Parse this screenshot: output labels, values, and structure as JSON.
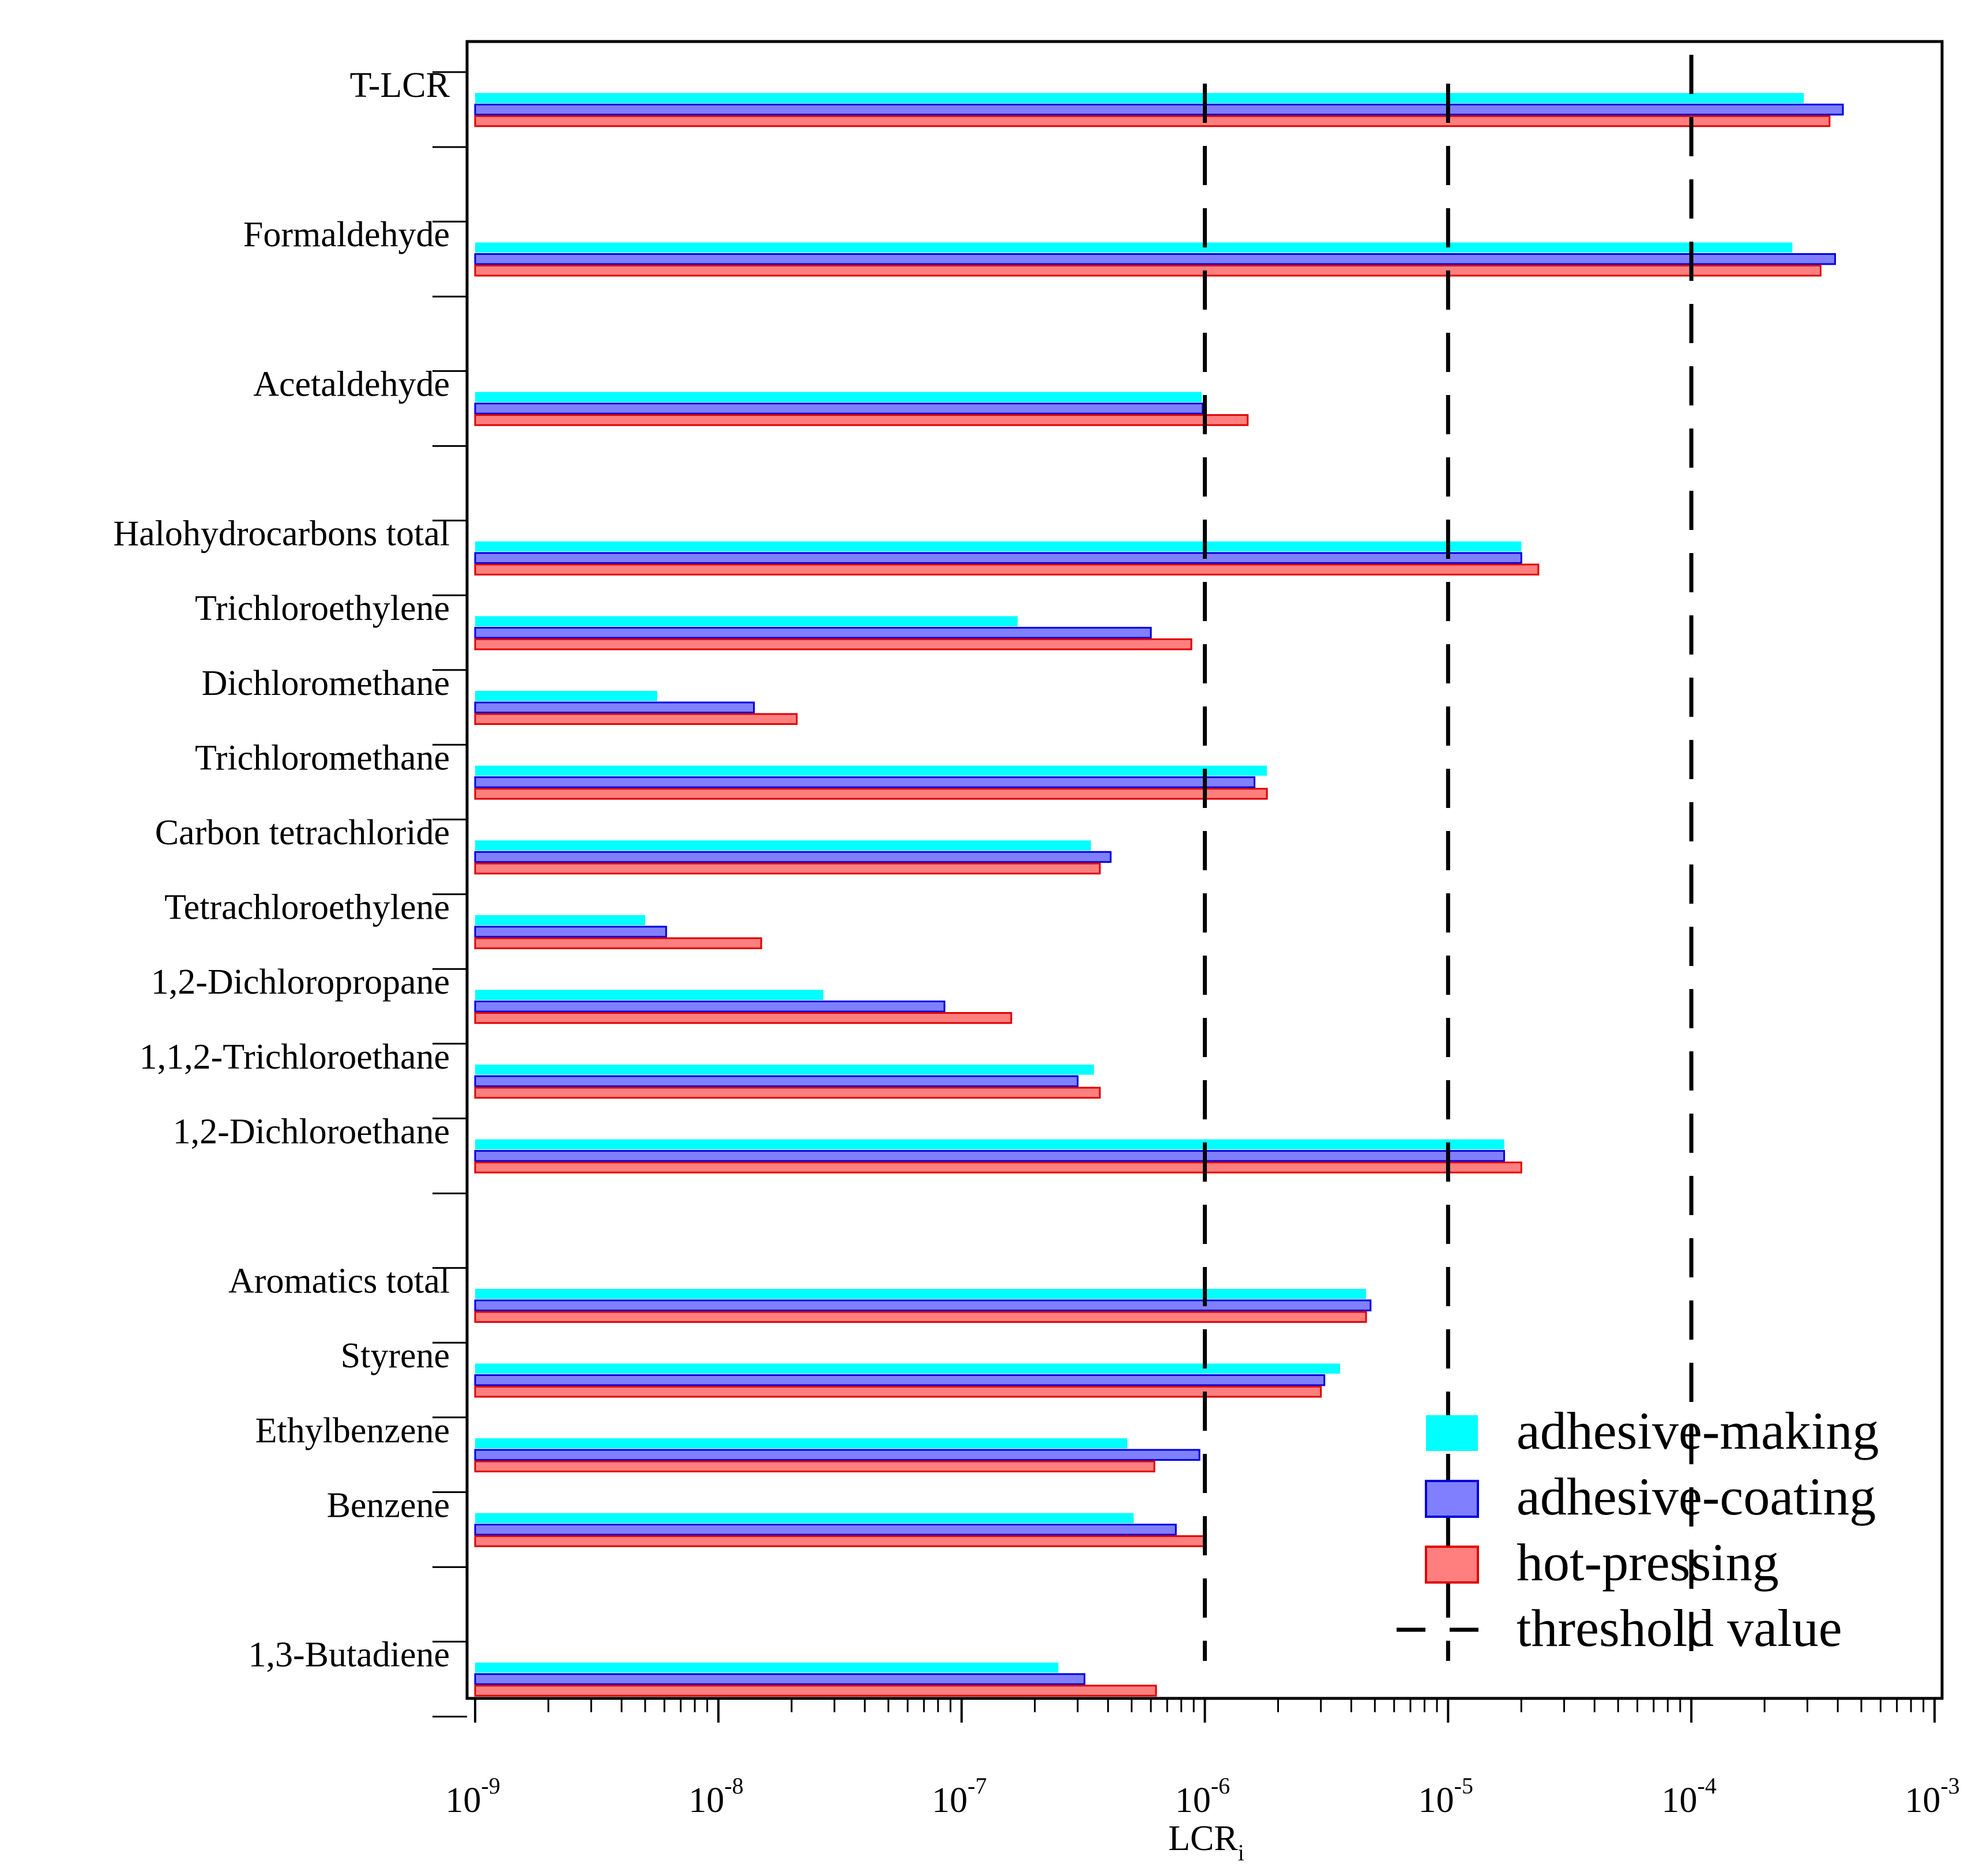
{
  "chart_data": {
    "type": "bar",
    "orientation": "horizontal",
    "scale": "log",
    "xlabel": "LCR",
    "xlabel_subscript": "i",
    "xlim": [
      1e-09,
      0.001
    ],
    "tick_labels": [
      {
        "base": "10",
        "exp": "-9"
      },
      {
        "base": "10",
        "exp": "-8"
      },
      {
        "base": "10",
        "exp": "-7"
      },
      {
        "base": "10",
        "exp": "-6"
      },
      {
        "base": "10",
        "exp": "-5"
      },
      {
        "base": "10",
        "exp": "-4"
      },
      {
        "base": "10",
        "exp": "-3"
      }
    ],
    "thresholds": [
      1e-06,
      1e-05,
      0.0001
    ],
    "legend_position": "bottom-right",
    "series": [
      {
        "name": "adhesive-making",
        "color": "#00ffff"
      },
      {
        "name": "adhesive-coating",
        "color": "#8080ff",
        "edge": "#0000e0"
      },
      {
        "name": "hot-pressing",
        "color": "#ff7f7f",
        "edge": "#e00000"
      }
    ],
    "threshold_legend": "threshold value",
    "categories": [
      {
        "label": "T-LCR",
        "values": [
          0.00029,
          0.00042,
          0.00037
        ]
      },
      {
        "label": "Formaldehyde",
        "values": [
          0.00026,
          0.00039,
          0.00034
        ]
      },
      {
        "label": "Acetaldehyde",
        "values": [
          9.7e-07,
          9.8e-07,
          1.5e-06
        ]
      },
      {
        "label": "Halohydrocarbons total",
        "values": [
          2e-05,
          2e-05,
          2.35e-05
        ]
      },
      {
        "label": "Trichloroethylene",
        "values": [
          1.7e-07,
          6e-07,
          8.8e-07
        ]
      },
      {
        "label": "Dichloromethane",
        "values": [
          5.6e-09,
          1.4e-08,
          2.1e-08
        ]
      },
      {
        "label": "Trichloromethane",
        "values": [
          1.8e-06,
          1.6e-06,
          1.8e-06
        ]
      },
      {
        "label": "Carbon tetrachloride",
        "values": [
          3.4e-07,
          4.1e-07,
          3.7e-07
        ]
      },
      {
        "label": "Tetrachloroethylene",
        "values": [
          5e-09,
          6.1e-09,
          1.5e-08
        ]
      },
      {
        "label": "1,2-Dichloropropane",
        "values": [
          2.7e-08,
          8.5e-08,
          1.6e-07
        ]
      },
      {
        "label": "1,1,2-Trichloroethane",
        "values": [
          3.5e-07,
          3e-07,
          3.7e-07
        ]
      },
      {
        "label": "1,2-Dichloroethane",
        "values": [
          1.7e-05,
          1.7e-05,
          2e-05
        ]
      },
      {
        "label": "Aromatics total",
        "values": [
          4.6e-06,
          4.8e-06,
          4.6e-06
        ]
      },
      {
        "label": "Styrene",
        "values": [
          3.6e-06,
          3.1e-06,
          3e-06
        ]
      },
      {
        "label": "Ethylbenzene",
        "values": [
          4.8e-07,
          9.5e-07,
          6.2e-07
        ]
      },
      {
        "label": "Benzene",
        "values": [
          5.1e-07,
          7.6e-07,
          1e-06
        ]
      },
      {
        "label": "1,3-Butadiene",
        "values": [
          2.5e-07,
          3.2e-07,
          6.3e-07
        ]
      }
    ]
  }
}
